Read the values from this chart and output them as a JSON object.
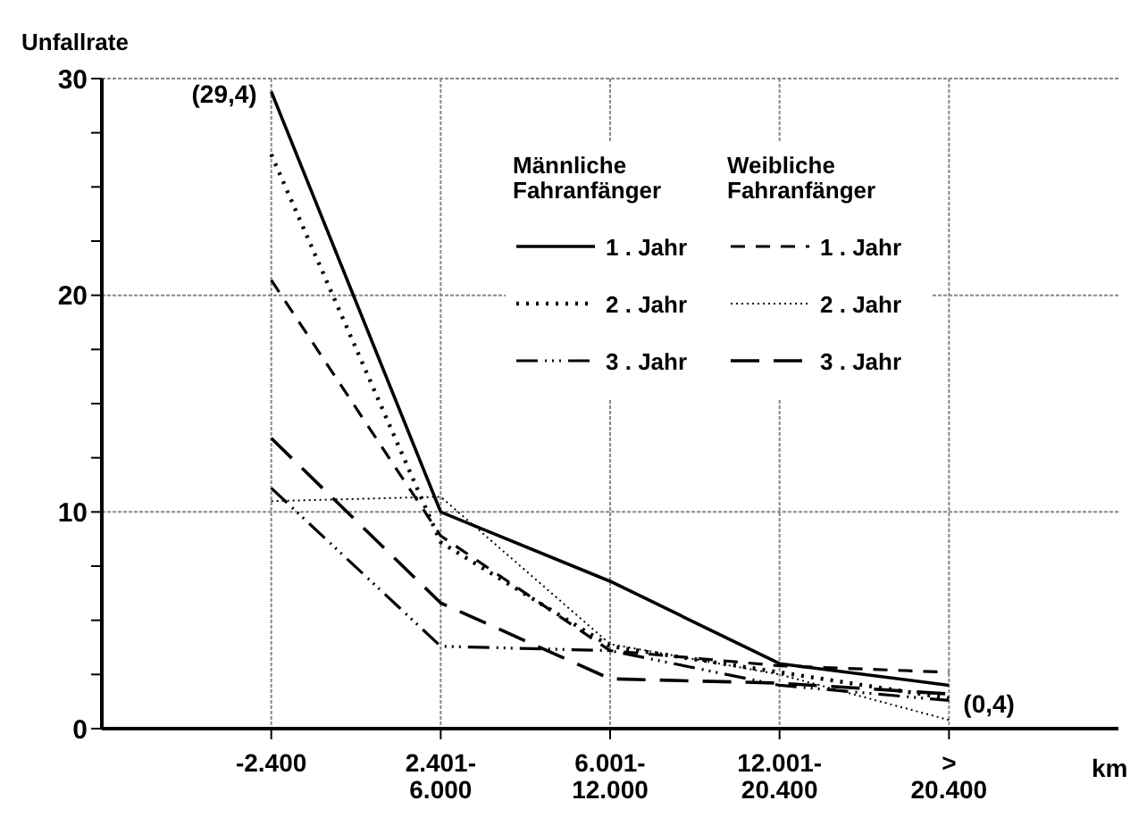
{
  "chart_data": {
    "type": "line",
    "ylabel": "Unfallrate",
    "xlabel": "km",
    "categories": [
      "-2.400",
      "2.401-\n6.000",
      "6.001-\n12.000",
      "12.001-\n20.400",
      ">\n20.400"
    ],
    "series": [
      {
        "name": "1 . Jahr",
        "color": "#000000",
        "line_style": "solid",
        "values": [
          29.4,
          10.0,
          6.8,
          3.0,
          2.0
        ]
      },
      {
        "name": "2 . Jahr",
        "color": "#000000",
        "line_style": "dotted",
        "values": [
          26.5,
          8.6,
          3.8,
          2.6,
          1.4
        ]
      },
      {
        "name": "3 . Jahr",
        "color": "#000000",
        "line_style": "dashdot",
        "values": [
          11.1,
          3.8,
          3.6,
          2.0,
          1.3
        ]
      },
      {
        "name": "1 . Jahr",
        "color": "#000000",
        "line_style": "dashed",
        "values": [
          20.7,
          8.9,
          3.6,
          2.9,
          2.6
        ]
      },
      {
        "name": "2 . Jahr",
        "color": "#000000",
        "line_style": "finedotted",
        "values": [
          10.5,
          10.7,
          3.9,
          2.5,
          0.4
        ]
      },
      {
        "name": "3 . Jahr",
        "color": "#000000",
        "line_style": "longdash",
        "values": [
          13.4,
          5.8,
          2.3,
          2.1,
          1.6
        ]
      }
    ],
    "ylim": [
      0,
      30
    ],
    "yticks": [
      0,
      {
        "value": 2.5,
        "label": null
      },
      {
        "value": 5,
        "label": null
      },
      {
        "value": 7.5,
        "label": null
      },
      10,
      {
        "value": 12.5,
        "label": null
      },
      {
        "value": 15,
        "label": null
      },
      {
        "value": 17.5,
        "label": null
      },
      20,
      {
        "value": 22.5,
        "label": null
      },
      {
        "value": 25,
        "label": null
      },
      {
        "value": 27.5,
        "label": null
      },
      30
    ],
    "grid": true,
    "legend": "top right",
    "marker": "none",
    "annotations": [
      "Männliche\nFahranfänger",
      "Weibliche\nFahranfänger",
      {
        "text": "(29,4)",
        "x": "-2.400",
        "y": 29.4
      },
      {
        "text": "(0,4)",
        "x": ">\n20.400",
        "y": 0.4
      }
    ]
  }
}
